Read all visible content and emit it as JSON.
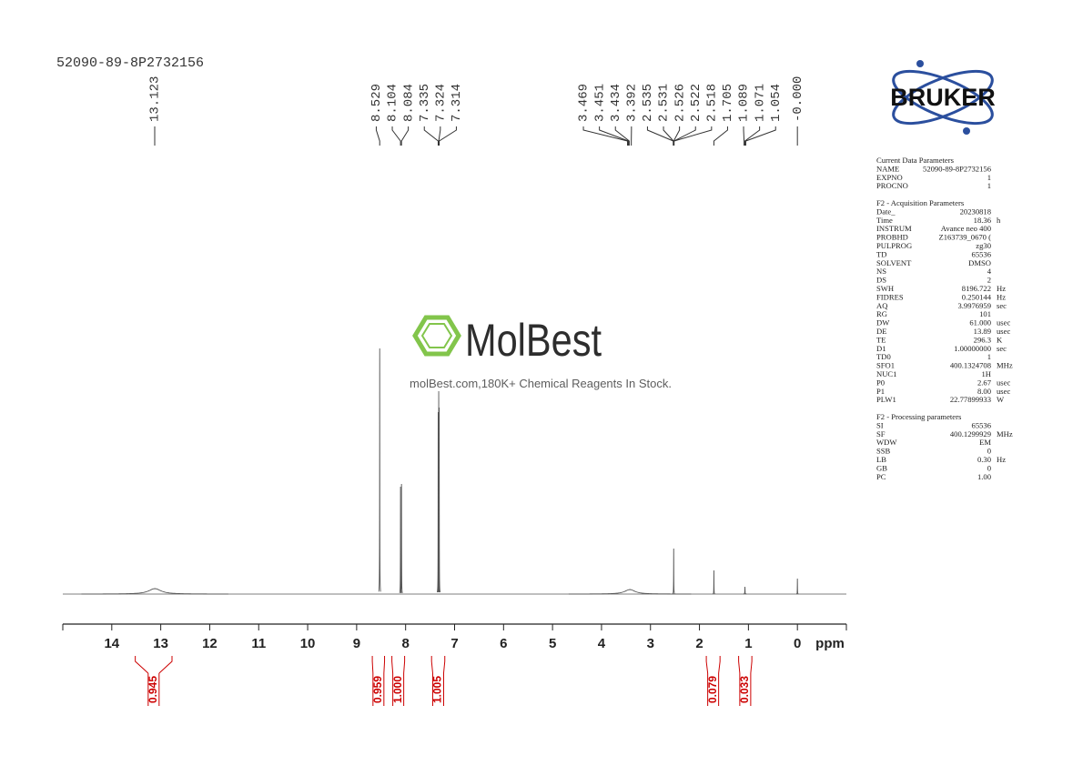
{
  "chart_data": {
    "type": "nmr",
    "title": "52090-89-8P2732156",
    "x_label": "ppm",
    "xlim": [
      15,
      -1
    ],
    "xticks": [
      14,
      13,
      12,
      11,
      10,
      9,
      8,
      7,
      6,
      5,
      4,
      3,
      2,
      1,
      0
    ],
    "ylim": [
      0,
      300
    ],
    "color": "#555555",
    "peaks": {
      "x": [
        13.12,
        8.529,
        8.104,
        8.084,
        7.335,
        7.324,
        7.314,
        3.42,
        2.526,
        1.705,
        1.071,
        0
      ],
      "height": [
        6,
        270,
        118,
        121,
        200,
        223,
        205,
        5,
        50,
        26,
        8,
        17
      ],
      "width": [
        0.3,
        0.004,
        0.004,
        0.004,
        0.004,
        0.004,
        0.004,
        0.25,
        0.004,
        0.004,
        0.006,
        0.004
      ]
    },
    "peak_labels": [
      13.123,
      8.529,
      8.104,
      8.084,
      7.335,
      7.324,
      7.314,
      3.469,
      3.451,
      3.434,
      3.392,
      2.535,
      2.531,
      2.526,
      2.522,
      2.518,
      1.705,
      1.089,
      1.071,
      1.054,
      {
        "value": 0,
        "label": "-0.000"
      }
    ],
    "integrals": {
      "color": "#cc0000",
      "ranges": [
        [
          13.52,
          12.77
        ],
        [
          8.68,
          8.43
        ],
        [
          8.28,
          8.02
        ],
        [
          7.47,
          7.2
        ],
        [
          1.86,
          1.58
        ],
        [
          1.2,
          0.93
        ]
      ],
      "values": [
        0.945,
        0.959,
        1,
        1.005,
        0.079,
        0.033
      ],
      "value_labels": [
        "0.945",
        "0.959",
        "1.000",
        "1.005",
        "0.079",
        "0.033"
      ]
    }
  },
  "brand": "BRUKER",
  "watermark": {
    "name": "MolBest",
    "tagline": "molBest.com,180K+ Chemical Reagents In Stock."
  },
  "parameters": [
    {
      "title": "Current Data Parameters",
      "rows": [
        [
          "NAME",
          "52090-89-8P2732156"
        ],
        [
          "EXPNO",
          "1"
        ],
        [
          "PROCNO",
          "1"
        ]
      ]
    },
    {
      "title": "F2 - Acquisition Parameters",
      "rows": [
        [
          "Date_",
          "20230818"
        ],
        [
          "Time",
          "18.36",
          "h"
        ],
        [
          "INSTRUM",
          "Avance neo 400"
        ],
        [
          "PROBHD",
          "Z163739_0670 ("
        ],
        [
          "PULPROG",
          "zg30"
        ],
        [
          "TD",
          "65536"
        ],
        [
          "SOLVENT",
          "DMSO"
        ],
        [
          "NS",
          "4"
        ],
        [
          "DS",
          "2"
        ],
        [
          "SWH",
          "8196.722",
          "Hz"
        ],
        [
          "FIDRES",
          "0.250144",
          "Hz"
        ],
        [
          "AQ",
          "3.9976959",
          "sec"
        ],
        [
          "RG",
          "101"
        ],
        [
          "DW",
          "61.000",
          "usec"
        ],
        [
          "DE",
          "13.89",
          "usec"
        ],
        [
          "TE",
          "296.3",
          "K"
        ],
        [
          "D1",
          "1.00000000",
          "sec"
        ],
        [
          "TD0",
          "1"
        ],
        [
          "SFO1",
          "400.1324708",
          "MHz"
        ],
        [
          "NUC1",
          "1H"
        ],
        [
          "P0",
          "2.67",
          "usec"
        ],
        [
          "P1",
          "8.00",
          "usec"
        ],
        [
          "PLW1",
          "22.77899933",
          "W"
        ]
      ]
    },
    {
      "title": "F2 - Processing parameters",
      "rows": [
        [
          "SI",
          "65536"
        ],
        [
          "SF",
          "400.1299929",
          "MHz"
        ],
        [
          "WDW",
          "EM"
        ],
        [
          "SSB",
          "0"
        ],
        [
          "LB",
          "0.30",
          "Hz"
        ],
        [
          "GB",
          "0"
        ],
        [
          "PC",
          "1.00"
        ]
      ]
    }
  ]
}
